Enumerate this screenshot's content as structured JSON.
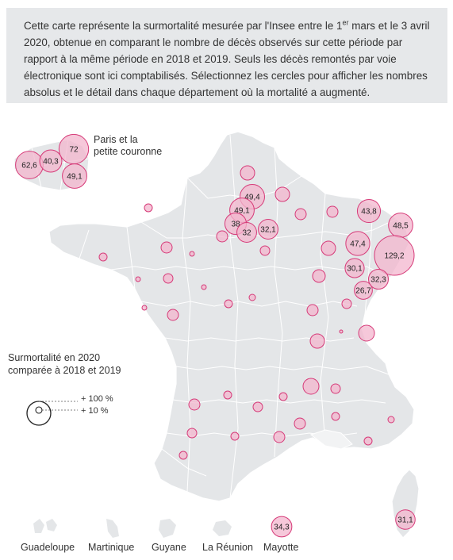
{
  "intro": {
    "part1": "Cette carte représente la surmortalité mesurée par l'Insee entre le 1",
    "sup": "er",
    "part2": " mars et le 3 avril 2020, obtenue en comparant le nombre de décès observés sur cette période par rapport à la même période en 2018 et 2019. Seuls les décès remontés par voie électronique sont ici comptabilisés. Sélectionnez les cercles pour afficher les nombres absolus et le détail dans chaque département où la mortalité a augmenté."
  },
  "paris_label": [
    "Paris et la",
    "petite couronne"
  ],
  "legend": {
    "title": [
      "Surmortalité en 2020",
      "comparée à 2018 et 2019"
    ],
    "large": "+ 100 %",
    "small": "+ 10 %"
  },
  "colors": {
    "circle_fill": "#f3b6ce",
    "circle_stroke": "#d63a78",
    "land": "#e4e6e8",
    "border": "#ffffff"
  },
  "paris_circles": [
    {
      "label": "72",
      "value": 72
    },
    {
      "label": "62,6",
      "value": 62.6
    },
    {
      "label": "40,3",
      "value": 40.3
    },
    {
      "label": "49,1",
      "value": 49.1
    }
  ],
  "labeled_circles": [
    {
      "label": "49,4",
      "value": 49.4
    },
    {
      "label": "49,1",
      "value": 49.1
    },
    {
      "label": "38",
      "value": 38
    },
    {
      "label": "32",
      "value": 32
    },
    {
      "label": "32,1",
      "value": 32.1
    },
    {
      "label": "43,8",
      "value": 43.8
    },
    {
      "label": "48,5",
      "value": 48.5
    },
    {
      "label": "47,4",
      "value": 47.4
    },
    {
      "label": "129,2",
      "value": 129.2
    },
    {
      "label": "30,1",
      "value": 30.1
    },
    {
      "label": "32,3",
      "value": 32.3
    },
    {
      "label": "26,7",
      "value": 26.7
    },
    {
      "label": "31,1",
      "value": 31.1
    },
    {
      "label": "34,3",
      "value": 34.3
    }
  ],
  "overseas": [
    "Guadeloupe",
    "Martinique",
    "Guyane",
    "La Réunion",
    "Mayotte"
  ]
}
